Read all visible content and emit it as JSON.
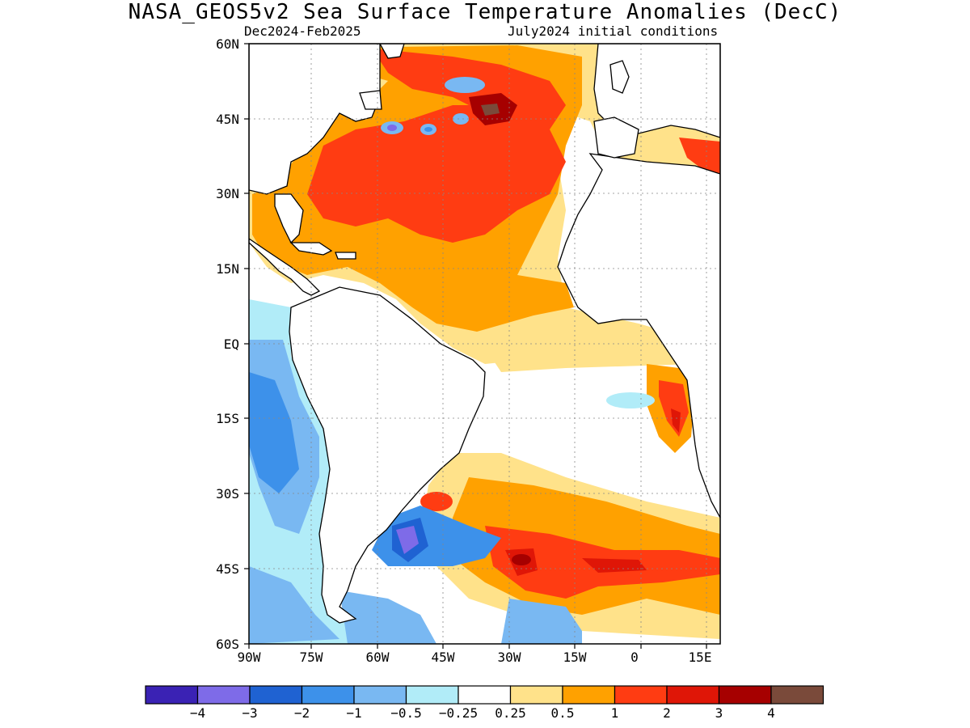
{
  "header": {
    "title": "NASA_GEOS5v2 Sea Surface Temperature Anomalies (DecC)",
    "period": "Dec2024-Feb2025",
    "init": "July2024 initial conditions"
  },
  "axes": {
    "lat_labels": [
      "60N",
      "45N",
      "30N",
      "15N",
      "EQ",
      "15S",
      "30S",
      "45S",
      "60S"
    ],
    "lon_labels": [
      "90W",
      "75W",
      "60W",
      "45W",
      "30W",
      "15W",
      "0",
      "15E"
    ]
  },
  "legend": {
    "colors": [
      "#3a22b4",
      "#7e6be8",
      "#1f62d2",
      "#3d91ea",
      "#79b8f2",
      "#b1ecf8",
      "#ffffff",
      "#ffe28a",
      "#ffa100",
      "#ff3c12",
      "#df1607",
      "#a60000",
      "#7a4a3a"
    ],
    "labels": [
      "-4",
      "-3",
      "-2",
      "-1",
      "-0.5",
      "-0.25",
      "0.25",
      "0.5",
      "1",
      "2",
      "3",
      "4"
    ]
  },
  "palette": {
    "strong_warm": "#a60000",
    "very_warm": "#df1607",
    "warm": "#ff3c12",
    "mild_warm": "#ffa100",
    "slight_warm": "#ffe28a",
    "neutral": "#ffffff",
    "slight_cool": "#b1ecf8",
    "mild_cool": "#79b8f2",
    "cool": "#3d91ea",
    "very_cool": "#1f62d2",
    "extreme_cool": "#7e6be8",
    "extreme_cool2": "#3a22b4",
    "extreme_warm": "#7a4a3a"
  }
}
